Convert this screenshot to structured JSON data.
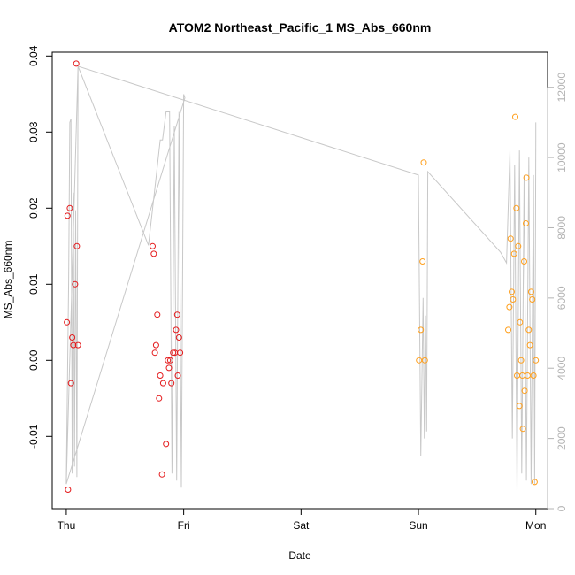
{
  "chart_data": {
    "type": "scatter",
    "title": "ATOM2 Northeast_Pacific_1 MS_Abs_660nm",
    "xlabel": "Date",
    "ylabel": "MS_Abs_660nm",
    "x_ticks": [
      {
        "label": "Thu",
        "day": 0
      },
      {
        "label": "Fri",
        "day": 1
      },
      {
        "label": "Sat",
        "day": 2
      },
      {
        "label": "Sun",
        "day": 3
      },
      {
        "label": "Mon",
        "day": 4
      }
    ],
    "xlim": [
      -0.12,
      4.1
    ],
    "ylim": [
      -0.0195,
      0.0405
    ],
    "y_ticks": [
      {
        "label": "-0.01",
        "value": -0.01
      },
      {
        "label": "0.00",
        "value": 0.0
      },
      {
        "label": "0.01",
        "value": 0.01
      },
      {
        "label": "0.02",
        "value": 0.02
      },
      {
        "label": "0.03",
        "value": 0.03
      },
      {
        "label": "0.04",
        "value": 0.04
      }
    ],
    "y2lim": [
      0,
      13000
    ],
    "y2_ticks": [
      {
        "label": "0",
        "value": 0
      },
      {
        "label": "2000",
        "value": 2000
      },
      {
        "label": "4000",
        "value": 4000
      },
      {
        "label": "6000",
        "value": 6000
      },
      {
        "label": "8000",
        "value": 8000
      },
      {
        "label": "10000",
        "value": 10000
      },
      {
        "label": "12000",
        "value": 12000
      }
    ],
    "colors": {
      "series_red": "#e41a1c",
      "series_orange": "#ff9f1c",
      "secondary_line": "#c8c8c8",
      "right_axis": "#b3b3b3"
    },
    "series": [
      {
        "color": "#e41a1c",
        "points": [
          [
            0.005,
            0.005
          ],
          [
            0.01,
            0.019
          ],
          [
            0.015,
            -0.017
          ],
          [
            0.03,
            0.02
          ],
          [
            0.04,
            -0.003
          ],
          [
            0.05,
            0.003
          ],
          [
            0.06,
            0.002
          ],
          [
            0.075,
            0.01
          ],
          [
            0.085,
            0.039
          ],
          [
            0.09,
            0.015
          ],
          [
            0.1,
            0.002
          ],
          [
            0.735,
            0.015
          ],
          [
            0.745,
            0.014
          ],
          [
            0.755,
            0.001
          ],
          [
            0.765,
            0.002
          ],
          [
            0.775,
            0.006
          ],
          [
            0.79,
            -0.005
          ],
          [
            0.8,
            -0.002
          ],
          [
            0.815,
            -0.015
          ],
          [
            0.825,
            -0.003
          ],
          [
            0.85,
            -0.011
          ],
          [
            0.865,
            0.0
          ],
          [
            0.875,
            -0.001
          ],
          [
            0.885,
            0.0
          ],
          [
            0.895,
            -0.003
          ],
          [
            0.91,
            0.001
          ],
          [
            0.925,
            0.001
          ],
          [
            0.935,
            0.004
          ],
          [
            0.945,
            0.006
          ],
          [
            0.95,
            -0.002
          ],
          [
            0.96,
            0.003
          ],
          [
            0.97,
            0.001
          ]
        ]
      },
      {
        "color": "#ff9f1c",
        "points": [
          [
            3.005,
            0.0
          ],
          [
            3.02,
            0.004
          ],
          [
            3.035,
            0.013
          ],
          [
            3.045,
            0.026
          ],
          [
            3.055,
            0.0
          ],
          [
            3.765,
            0.004
          ],
          [
            3.775,
            0.007
          ],
          [
            3.785,
            0.016
          ],
          [
            3.795,
            0.009
          ],
          [
            3.805,
            0.008
          ],
          [
            3.815,
            0.014
          ],
          [
            3.825,
            0.032
          ],
          [
            3.835,
            0.02
          ],
          [
            3.84,
            -0.002
          ],
          [
            3.85,
            0.015
          ],
          [
            3.86,
            -0.006
          ],
          [
            3.865,
            0.005
          ],
          [
            3.875,
            0.0
          ],
          [
            3.885,
            -0.002
          ],
          [
            3.89,
            -0.009
          ],
          [
            3.9,
            0.013
          ],
          [
            3.905,
            -0.004
          ],
          [
            3.915,
            0.018
          ],
          [
            3.92,
            0.024
          ],
          [
            3.93,
            -0.002
          ],
          [
            3.94,
            0.004
          ],
          [
            3.95,
            0.002
          ],
          [
            3.96,
            0.009
          ],
          [
            3.97,
            0.008
          ],
          [
            3.98,
            -0.002
          ],
          [
            3.99,
            -0.016
          ],
          [
            4.0,
            0.0
          ]
        ]
      }
    ],
    "secondary_line": {
      "axis": "right",
      "points": [
        [
          0.0,
          700
        ],
        [
          0.02,
          6500
        ],
        [
          0.03,
          11000
        ],
        [
          0.04,
          11100
        ],
        [
          0.05,
          1000
        ],
        [
          0.06,
          9000
        ],
        [
          0.07,
          1200
        ],
        [
          0.08,
          8500
        ],
        [
          0.09,
          900
        ],
        [
          0.1,
          12600
        ],
        [
          0.7,
          7500
        ],
        [
          0.75,
          9000
        ],
        [
          0.8,
          10500
        ],
        [
          0.82,
          10500
        ],
        [
          0.85,
          11300
        ],
        [
          0.88,
          11300
        ],
        [
          0.9,
          1000
        ],
        [
          0.92,
          10900
        ],
        [
          0.94,
          800
        ],
        [
          0.96,
          11300
        ],
        [
          0.98,
          600
        ],
        [
          1.0,
          11800
        ],
        [
          1.01,
          11700
        ],
        [
          0.0,
          700
        ],
        [
          0.1,
          12600
        ],
        [
          3.0,
          9500
        ],
        [
          3.02,
          1500
        ],
        [
          3.04,
          6000
        ],
        [
          3.05,
          2000
        ],
        [
          3.06,
          5500
        ],
        [
          3.07,
          2200
        ],
        [
          3.08,
          9600
        ],
        [
          3.7,
          7300
        ],
        [
          3.75,
          7000
        ],
        [
          3.78,
          10200
        ],
        [
          3.8,
          2000
        ],
        [
          3.82,
          9800
        ],
        [
          3.84,
          500
        ],
        [
          3.86,
          10200
        ],
        [
          3.88,
          1000
        ],
        [
          3.9,
          9500
        ],
        [
          3.92,
          800
        ],
        [
          3.94,
          10000
        ],
        [
          3.96,
          700
        ],
        [
          3.98,
          9500
        ],
        [
          3.99,
          700
        ],
        [
          4.0,
          10500
        ],
        [
          4.0,
          11000
        ]
      ]
    }
  }
}
